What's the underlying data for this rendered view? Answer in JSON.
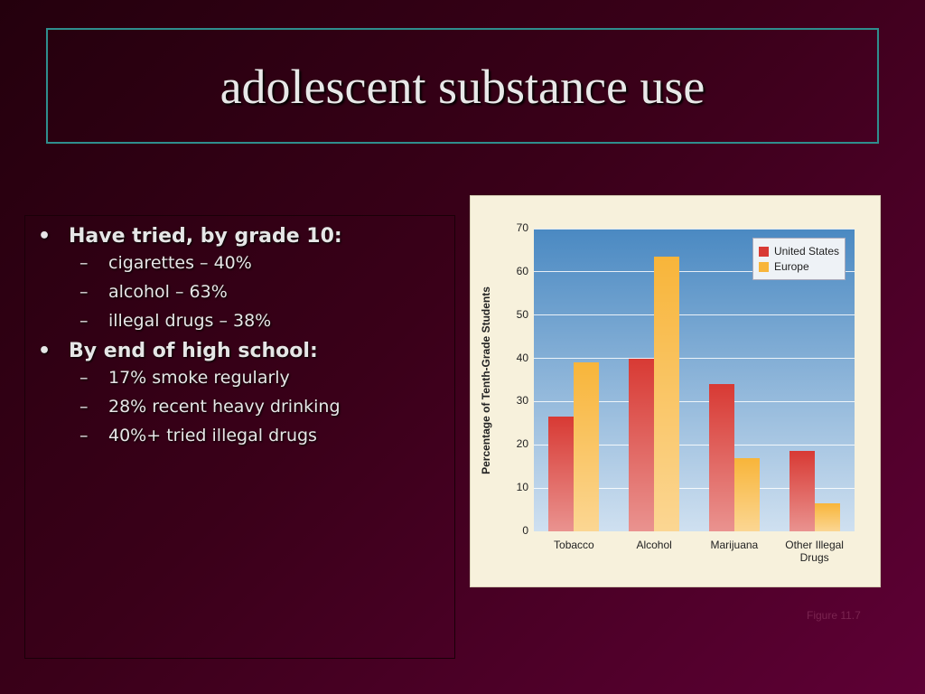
{
  "title": "adolescent substance use",
  "bullets": [
    {
      "text": "Have tried, by grade 10:",
      "items": [
        "cigarettes – 40%",
        "alcohol – 63%",
        "illegal drugs – 38%"
      ]
    },
    {
      "text": "By end of high school:",
      "items": [
        "17% smoke regularly",
        "28% recent heavy drinking",
        "40%+ tried illegal drugs"
      ]
    }
  ],
  "chart_data": {
    "type": "bar",
    "y_label": "Percentage of Tenth-Grade Students",
    "categories": [
      "Tobacco",
      "Alcohol",
      "Marijuana",
      "Other Illegal Drugs"
    ],
    "series": [
      {
        "name": "United States",
        "color": "#d83a34",
        "values": [
          26.5,
          40,
          34,
          18.5
        ]
      },
      {
        "name": "Europe",
        "color": "#f8b53a",
        "values": [
          39,
          63.5,
          17,
          6.5
        ]
      }
    ],
    "ylim": [
      0,
      70
    ],
    "yticks": [
      0,
      10,
      20,
      30,
      40,
      50,
      60,
      70
    ],
    "grid": true,
    "legend": "upper right"
  },
  "caption": "Figure 11.7"
}
